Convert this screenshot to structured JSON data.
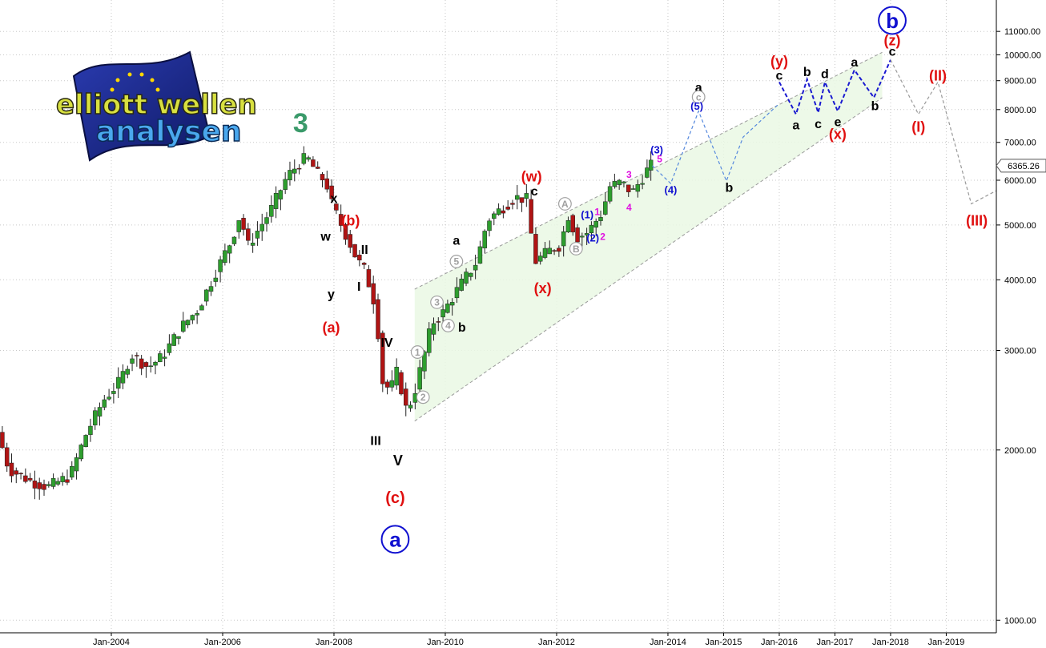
{
  "logo": {
    "line1": "elliott wellen",
    "line2": "analysen"
  },
  "colors": {
    "bull": "#2e9e2e",
    "bear": "#b01414",
    "wave_red": "#e01010",
    "wave_blue": "#1010d0",
    "wave_black": "#000000",
    "wave_grey": "#a0a0a0",
    "wave_magenta": "#e010e0",
    "wave_green": "#3a9a6a",
    "channel_fill": "#eaf8e4",
    "projection_blue": "#1a1ad0",
    "projection_lightblue": "#5588dd",
    "projection_grey": "#9a9a9a"
  },
  "chart_data": {
    "type": "candlestick",
    "title": "",
    "xlabel": "",
    "ylabel": "",
    "y_scale": "log",
    "ylim": [
      950,
      12500
    ],
    "xlim": [
      2002.0,
      2019.9
    ],
    "y_ticks": [
      1000,
      2000,
      3000,
      4000,
      5000,
      6000,
      7000,
      8000,
      9000,
      10000,
      11000
    ],
    "y_tick_labels": [
      "1000.00",
      "2000.00",
      "3000.00",
      "4000.00",
      "5000.00",
      "6000.00",
      "7000.00",
      "8000.00",
      "9000.00",
      "10000.00",
      "11000.00"
    ],
    "x_ticks": [
      2004,
      2006,
      2008,
      2010,
      2012,
      2014,
      2015,
      2016,
      2017,
      2018,
      2019
    ],
    "x_tick_labels": [
      "Jan-2004",
      "Jan-2006",
      "Jan-2008",
      "Jan-2010",
      "Jan-2012",
      "Jan-2014",
      "Jan-2015",
      "Jan-2016",
      "Jan-2017",
      "Jan-2018",
      "Jan-2019"
    ],
    "last_price": 6365.26,
    "last_price_label": "6365.26",
    "price_path": [
      [
        2002.0,
        2150
      ],
      [
        2002.2,
        1850
      ],
      [
        2002.6,
        1760
      ],
      [
        2002.9,
        1720
      ],
      [
        2003.3,
        1800
      ],
      [
        2003.6,
        2150
      ],
      [
        2003.9,
        2450
      ],
      [
        2004.2,
        2650
      ],
      [
        2004.4,
        2950
      ],
      [
        2004.7,
        2800
      ],
      [
        2004.95,
        2920
      ],
      [
        2005.3,
        3300
      ],
      [
        2005.6,
        3550
      ],
      [
        2005.9,
        4100
      ],
      [
        2006.2,
        4700
      ],
      [
        2006.35,
        5200
      ],
      [
        2006.5,
        4600
      ],
      [
        2006.9,
        5300
      ],
      [
        2007.2,
        6100
      ],
      [
        2007.4,
        6400
      ],
      [
        2007.55,
        6600
      ],
      [
        2007.75,
        6150
      ],
      [
        2007.9,
        5950
      ],
      [
        2008.0,
        5450
      ],
      [
        2008.15,
        5050
      ],
      [
        2008.3,
        4700
      ],
      [
        2008.45,
        4350
      ],
      [
        2008.6,
        4150
      ],
      [
        2008.8,
        3550
      ],
      [
        2008.9,
        2650
      ],
      [
        2009.05,
        2550
      ],
      [
        2009.2,
        2800
      ],
      [
        2009.3,
        2350
      ],
      [
        2009.45,
        2450
      ],
      [
        2009.6,
        2800
      ],
      [
        2009.8,
        3350
      ],
      [
        2010.0,
        3500
      ],
      [
        2010.3,
        3900
      ],
      [
        2010.6,
        4300
      ],
      [
        2010.8,
        5100
      ],
      [
        2011.0,
        5300
      ],
      [
        2011.3,
        5600
      ],
      [
        2011.5,
        5550
      ],
      [
        2011.65,
        4300
      ],
      [
        2011.9,
        4500
      ],
      [
        2012.1,
        4600
      ],
      [
        2012.25,
        5200
      ],
      [
        2012.4,
        4750
      ],
      [
        2012.6,
        4850
      ],
      [
        2012.85,
        5250
      ],
      [
        2013.0,
        5850
      ],
      [
        2013.2,
        5950
      ],
      [
        2013.4,
        5700
      ],
      [
        2013.55,
        6000
      ],
      [
        2013.72,
        6365
      ]
    ],
    "projections": [
      {
        "name": "path-lightblue",
        "color": "#5588dd",
        "points": [
          [
            2013.72,
            6365
          ],
          [
            2014.05,
            5920
          ],
          [
            2014.55,
            7950
          ],
          [
            2015.05,
            5980
          ],
          [
            2015.35,
            7150
          ],
          [
            2016.0,
            8200
          ]
        ]
      },
      {
        "name": "path-blue",
        "color": "#1a1ad0",
        "points": [
          [
            2016.0,
            8950
          ],
          [
            2016.3,
            7850
          ],
          [
            2016.5,
            9050
          ],
          [
            2016.7,
            7900
          ],
          [
            2016.82,
            8950
          ],
          [
            2017.05,
            7950
          ],
          [
            2017.35,
            9400
          ],
          [
            2017.7,
            8400
          ],
          [
            2018.0,
            9800
          ]
        ]
      },
      {
        "name": "path-grey",
        "color": "#9a9a9a",
        "points": [
          [
            2018.0,
            9800
          ],
          [
            2018.5,
            7850
          ],
          [
            2018.85,
            8950
          ],
          [
            2019.45,
            5450
          ],
          [
            2019.9,
            5750
          ]
        ]
      }
    ],
    "channel": {
      "upper": [
        [
          2009.45,
          3850
        ],
        [
          2017.85,
          10100
        ]
      ],
      "lower": [
        [
          2009.45,
          2250
        ],
        [
          2017.85,
          8400
        ]
      ]
    },
    "annotations": [
      {
        "text": "3",
        "x": 2007.4,
        "y": 7600,
        "color": "#3a9a6a",
        "size": 34,
        "circle": false
      },
      {
        "text": "x",
        "x": 2008.0,
        "y": 5580,
        "color": "#000000",
        "size": 16,
        "circle": false
      },
      {
        "text": "(b)",
        "x": 2008.3,
        "y": 5100,
        "color": "#e01010",
        "size": 18,
        "circle": false
      },
      {
        "text": "w",
        "x": 2007.85,
        "y": 4780,
        "color": "#000000",
        "size": 16,
        "circle": false
      },
      {
        "text": "II",
        "x": 2008.55,
        "y": 4530,
        "color": "#000000",
        "size": 16,
        "circle": false
      },
      {
        "text": "I",
        "x": 2008.45,
        "y": 3900,
        "color": "#000000",
        "size": 16,
        "circle": false
      },
      {
        "text": "y",
        "x": 2007.95,
        "y": 3780,
        "color": "#000000",
        "size": 16,
        "circle": false
      },
      {
        "text": "(a)",
        "x": 2007.95,
        "y": 3300,
        "color": "#e01010",
        "size": 18,
        "circle": false
      },
      {
        "text": "IV",
        "x": 2008.95,
        "y": 3100,
        "color": "#000000",
        "size": 16,
        "circle": false
      },
      {
        "text": "III",
        "x": 2008.75,
        "y": 2080,
        "color": "#000000",
        "size": 16,
        "circle": false
      },
      {
        "text": "V",
        "x": 2009.15,
        "y": 1920,
        "color": "#000000",
        "size": 18,
        "circle": false
      },
      {
        "text": "(c)",
        "x": 2009.1,
        "y": 1650,
        "color": "#e01010",
        "size": 20,
        "circle": false
      },
      {
        "text": "a",
        "x": 2009.1,
        "y": 1390,
        "color": "#1010d0",
        "size": 26,
        "circle": true
      },
      {
        "text": "1",
        "x": 2009.5,
        "y": 2980,
        "color": "#a0a0a0",
        "size": 12,
        "circle": true
      },
      {
        "text": "2",
        "x": 2009.6,
        "y": 2480,
        "color": "#a0a0a0",
        "size": 12,
        "circle": true
      },
      {
        "text": "3",
        "x": 2009.85,
        "y": 3650,
        "color": "#a0a0a0",
        "size": 12,
        "circle": true
      },
      {
        "text": "4",
        "x": 2010.05,
        "y": 3320,
        "color": "#a0a0a0",
        "size": 12,
        "circle": true
      },
      {
        "text": "5",
        "x": 2010.2,
        "y": 4310,
        "color": "#a0a0a0",
        "size": 12,
        "circle": true
      },
      {
        "text": "a",
        "x": 2010.2,
        "y": 4700,
        "color": "#000000",
        "size": 16,
        "circle": false
      },
      {
        "text": "b",
        "x": 2010.3,
        "y": 3300,
        "color": "#000000",
        "size": 16,
        "circle": false
      },
      {
        "text": "(w)",
        "x": 2011.55,
        "y": 6100,
        "color": "#e01010",
        "size": 18,
        "circle": false
      },
      {
        "text": "c",
        "x": 2011.6,
        "y": 5750,
        "color": "#000000",
        "size": 16,
        "circle": false
      },
      {
        "text": "(x)",
        "x": 2011.75,
        "y": 3870,
        "color": "#e01010",
        "size": 18,
        "circle": false
      },
      {
        "text": "A",
        "x": 2012.15,
        "y": 5450,
        "color": "#a0a0a0",
        "size": 12,
        "circle": true
      },
      {
        "text": "B",
        "x": 2012.35,
        "y": 4540,
        "color": "#a0a0a0",
        "size": 12,
        "circle": true
      },
      {
        "text": "(1)",
        "x": 2012.55,
        "y": 5220,
        "color": "#1010d0",
        "size": 13,
        "circle": false
      },
      {
        "text": "1",
        "x": 2012.73,
        "y": 5280,
        "color": "#e010e0",
        "size": 12,
        "circle": false
      },
      {
        "text": "(2)",
        "x": 2012.65,
        "y": 4750,
        "color": "#1010d0",
        "size": 13,
        "circle": false
      },
      {
        "text": "2",
        "x": 2012.83,
        "y": 4770,
        "color": "#e010e0",
        "size": 12,
        "circle": false
      },
      {
        "text": "3",
        "x": 2013.3,
        "y": 6150,
        "color": "#e010e0",
        "size": 12,
        "circle": false
      },
      {
        "text": "4",
        "x": 2013.3,
        "y": 5380,
        "color": "#e010e0",
        "size": 12,
        "circle": false
      },
      {
        "text": "(3)",
        "x": 2013.8,
        "y": 6800,
        "color": "#1010d0",
        "size": 13,
        "circle": false
      },
      {
        "text": "5",
        "x": 2013.85,
        "y": 6550,
        "color": "#e010e0",
        "size": 12,
        "circle": false
      },
      {
        "text": "(4)",
        "x": 2014.05,
        "y": 5770,
        "color": "#1010d0",
        "size": 13,
        "circle": false
      },
      {
        "text": "a",
        "x": 2014.55,
        "y": 8770,
        "color": "#000000",
        "size": 16,
        "circle": false
      },
      {
        "text": "c",
        "x": 2014.55,
        "y": 8420,
        "color": "#a0a0a0",
        "size": 12,
        "circle": true
      },
      {
        "text": "(5)",
        "x": 2014.52,
        "y": 8120,
        "color": "#1010d0",
        "size": 13,
        "circle": false
      },
      {
        "text": "b",
        "x": 2015.1,
        "y": 5830,
        "color": "#000000",
        "size": 16,
        "circle": false
      },
      {
        "text": "(y)",
        "x": 2016.0,
        "y": 9750,
        "color": "#e01010",
        "size": 18,
        "circle": false
      },
      {
        "text": "c",
        "x": 2016.0,
        "y": 9200,
        "color": "#000000",
        "size": 16,
        "circle": false
      },
      {
        "text": "b",
        "x": 2016.5,
        "y": 9350,
        "color": "#000000",
        "size": 16,
        "circle": false
      },
      {
        "text": "d",
        "x": 2016.82,
        "y": 9270,
        "color": "#000000",
        "size": 16,
        "circle": false
      },
      {
        "text": "a",
        "x": 2016.3,
        "y": 7520,
        "color": "#000000",
        "size": 16,
        "circle": false
      },
      {
        "text": "c",
        "x": 2016.7,
        "y": 7560,
        "color": "#000000",
        "size": 16,
        "circle": false
      },
      {
        "text": "e",
        "x": 2017.05,
        "y": 7620,
        "color": "#000000",
        "size": 16,
        "circle": false
      },
      {
        "text": "(x)",
        "x": 2017.05,
        "y": 7250,
        "color": "#e01010",
        "size": 18,
        "circle": false
      },
      {
        "text": "a",
        "x": 2017.35,
        "y": 9720,
        "color": "#000000",
        "size": 16,
        "circle": false
      },
      {
        "text": "b",
        "x": 2017.72,
        "y": 8130,
        "color": "#000000",
        "size": 16,
        "circle": false
      },
      {
        "text": "c",
        "x": 2018.03,
        "y": 10160,
        "color": "#000000",
        "size": 16,
        "circle": false
      },
      {
        "text": "(z)",
        "x": 2018.03,
        "y": 10620,
        "color": "#e01010",
        "size": 18,
        "circle": false
      },
      {
        "text": "b",
        "x": 2018.03,
        "y": 11500,
        "color": "#1010d0",
        "size": 26,
        "circle": true
      },
      {
        "text": "(II)",
        "x": 2018.85,
        "y": 9200,
        "color": "#e01010",
        "size": 18,
        "circle": false
      },
      {
        "text": "(I)",
        "x": 2018.5,
        "y": 7460,
        "color": "#e01010",
        "size": 18,
        "circle": false
      },
      {
        "text": "(III)",
        "x": 2019.55,
        "y": 5100,
        "color": "#e01010",
        "size": 18,
        "circle": false
      }
    ]
  }
}
